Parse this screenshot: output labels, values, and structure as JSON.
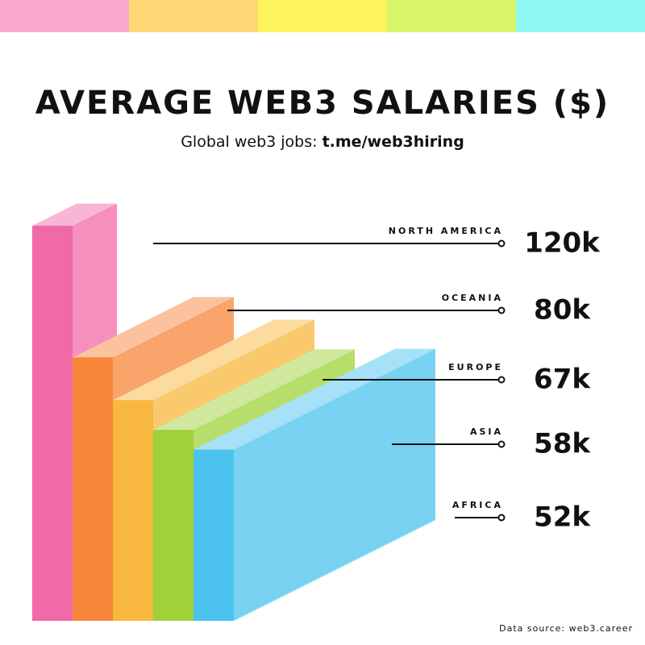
{
  "chart_data": {
    "type": "bar",
    "title": "AVERAGE WEB3 SALARIES ($)",
    "subtitle": "Global web3 jobs:",
    "subtitle_link": "t.me/web3hiring",
    "source": "Data source: web3.career",
    "categories": [
      "NORTH AMERICA",
      "OCEANIA",
      "EUROPE",
      "ASIA",
      "AFRICA"
    ],
    "values": [
      120000,
      80000,
      67000,
      58000,
      52000
    ],
    "value_labels": [
      "120k",
      "80k",
      "67k",
      "58k",
      "52k"
    ],
    "colors": [
      "#f06aa8",
      "#f7853a",
      "#f8b73e",
      "#9fd13a",
      "#4cc3ee"
    ]
  }
}
